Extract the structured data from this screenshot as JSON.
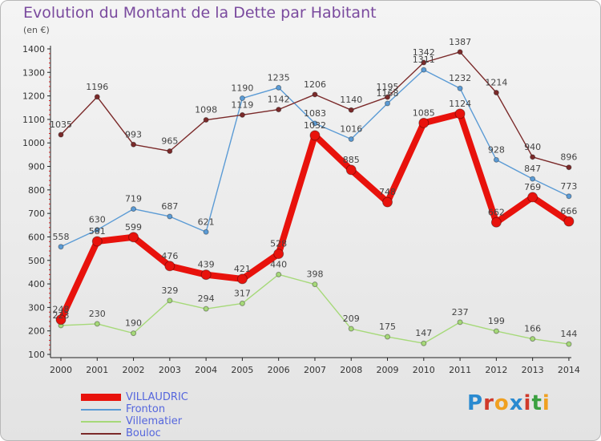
{
  "title": "Evolution du Montant de la Dette par Habitant",
  "subtitle": "(en €)",
  "logo": {
    "text": "Proxiti",
    "colors": [
      "#2a8ad0",
      "#d0392a",
      "#f0a020",
      "#2a8ad0",
      "#d0392a",
      "#3aa040",
      "#f0a020"
    ]
  },
  "chart_data": {
    "type": "line",
    "x": [
      "2000",
      "2001",
      "2002",
      "2003",
      "2004",
      "2005",
      "2006",
      "2007",
      "2008",
      "2009",
      "2010",
      "2011",
      "2012",
      "2013",
      "2014"
    ],
    "ylim": [
      100,
      1400
    ],
    "yticks": [
      100,
      200,
      300,
      400,
      500,
      600,
      700,
      800,
      900,
      1000,
      1100,
      1200,
      1300,
      1400
    ],
    "grid": false,
    "legend_position": "bottom-left",
    "series": [
      {
        "name": "Fronton",
        "color": "#5b9bd5",
        "width": 1.4,
        "marker": 3,
        "values": [
          558,
          630,
          719,
          687,
          621,
          1190,
          1235,
          1083,
          1016,
          1168,
          1311,
          1232,
          928,
          847,
          773
        ]
      },
      {
        "name": "Villematier",
        "color": "#a6d979",
        "width": 1.4,
        "marker": 3,
        "values": [
          223,
          230,
          190,
          329,
          294,
          317,
          440,
          398,
          209,
          175,
          147,
          237,
          199,
          166,
          144
        ]
      },
      {
        "name": "Bouloc",
        "color": "#7b2a2a",
        "width": 1.4,
        "marker": 3,
        "values": [
          1035,
          1196,
          993,
          965,
          1098,
          1119,
          1142,
          1206,
          1140,
          1195,
          1342,
          1387,
          1214,
          940,
          896
        ]
      },
      {
        "name": "VILLAUDRIC",
        "color": "#e8120c",
        "width": 8,
        "marker": 6,
        "values": [
          248,
          581,
          599,
          476,
          439,
          421,
          528,
          1032,
          885,
          748,
          1085,
          1124,
          662,
          769,
          666
        ]
      }
    ],
    "legend_order": [
      "VILLAUDRIC",
      "Fronton",
      "Villematier",
      "Bouloc"
    ],
    "legend_text_color": "#5566dd"
  }
}
